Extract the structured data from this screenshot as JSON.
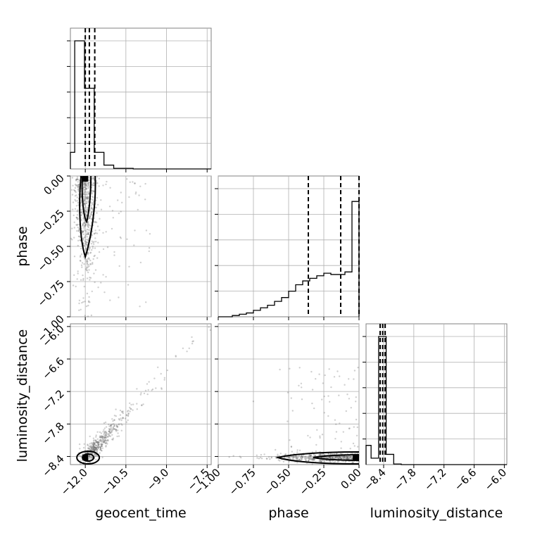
{
  "chart_data": {
    "type": "corner",
    "parameters": [
      {
        "label": "geocent_time",
        "range": [
          -12.75,
          -7.25
        ],
        "ticks": [
          "-12.0",
          "-10.5",
          "-9.0",
          "-7.5"
        ],
        "tick_values": [
          -12.0,
          -10.5,
          -9.0,
          -7.5
        ]
      },
      {
        "label": "phase",
        "range": [
          -1.0,
          0.0
        ],
        "ticks": [
          "-1.00",
          "-0.75",
          "-0.50",
          "-0.25",
          "0.00"
        ],
        "tick_values": [
          -1.0,
          -0.75,
          -0.5,
          -0.25,
          0.0
        ]
      },
      {
        "label": "luminosity_distance",
        "range": [
          -8.8,
          -5.9
        ],
        "ticks": [
          "-8.4",
          "-7.8",
          "-7.2",
          "-6.6",
          "-6.0"
        ],
        "tick_values": [
          -8.4,
          -7.8,
          -7.2,
          -6.6,
          -6.0
        ]
      }
    ],
    "y_tick_labels": {
      "phase": [
        "0.00",
        "-0.25",
        "-0.50",
        "-0.75",
        "-1.00"
      ],
      "luminosity_distance": [
        "-6.0",
        "-6.6",
        "-7.2",
        "-7.8",
        "-8.4"
      ]
    },
    "histograms": {
      "geocent_time": {
        "bin_edges": [
          -12.75,
          -12.39,
          -12.03,
          -11.67,
          -11.31,
          -10.95,
          -10.59,
          -10.23,
          -9.87,
          -9.51,
          -9.15,
          -8.79,
          -8.43,
          -8.07,
          -7.71,
          -7.25
        ],
        "counts": [
          0.13,
          1.0,
          0.63,
          0.13,
          0.03,
          0.005,
          0.005,
          0,
          0,
          0,
          0,
          0,
          0,
          0,
          0
        ]
      },
      "phase": {
        "bin_edges": [
          -1.0,
          -0.95,
          -0.9,
          -0.85,
          -0.8,
          -0.75,
          -0.7,
          -0.65,
          -0.6,
          -0.55,
          -0.5,
          -0.45,
          -0.4,
          -0.35,
          -0.3,
          -0.25,
          -0.2,
          -0.15,
          -0.1,
          -0.05,
          0.0
        ],
        "counts": [
          0.0,
          0.0,
          0.01,
          0.02,
          0.03,
          0.05,
          0.07,
          0.09,
          0.12,
          0.15,
          0.2,
          0.25,
          0.28,
          0.3,
          0.32,
          0.34,
          0.33,
          0.33,
          0.35,
          0.9
        ]
      },
      "luminosity_distance": {
        "bin_edges": [
          -8.8,
          -8.65,
          -8.5,
          -8.35,
          -8.2,
          -8.05,
          -7.9,
          -7.75,
          -7.6,
          -7.45,
          -7.3,
          -7.15,
          -7.0,
          -6.85,
          -6.7,
          -6.55,
          -6.4,
          -6.25,
          -6.1,
          -5.9
        ],
        "counts": [
          0.15,
          0.05,
          1.0,
          0.08,
          0.005,
          0,
          0,
          0,
          0,
          0,
          0,
          0,
          0,
          0,
          0,
          0,
          0,
          0,
          0
        ]
      }
    },
    "quantiles": {
      "geocent_time": [
        -12.0,
        -11.85,
        -11.65
      ],
      "phase": [
        -0.36,
        -0.13,
        0.0
      ],
      "luminosity_distance": [
        -8.47,
        -8.42,
        -8.37
      ]
    },
    "scatter_panels": [
      {
        "x": "geocent_time",
        "y": "phase"
      },
      {
        "x": "geocent_time",
        "y": "luminosity_distance"
      },
      {
        "x": "phase",
        "y": "luminosity_distance"
      }
    ],
    "grid": true,
    "colors": {
      "ink": "#000000",
      "frame": "#808080",
      "grid": "#b0b0b0",
      "samples": "#555555"
    }
  }
}
